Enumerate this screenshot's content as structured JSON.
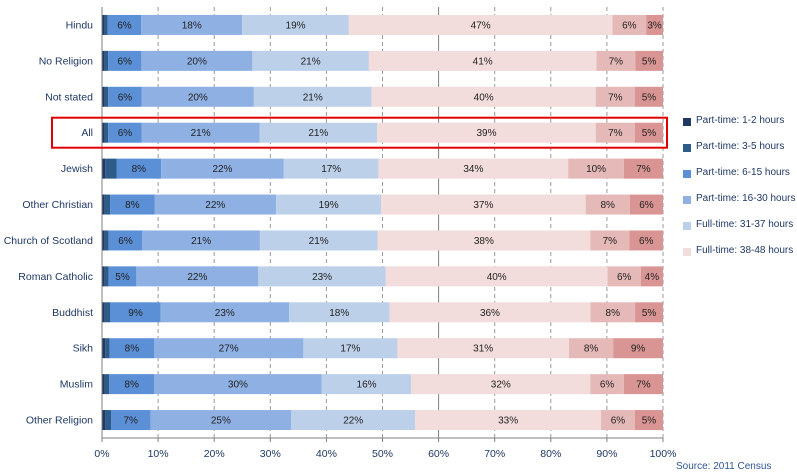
{
  "chart_data": {
    "type": "bar",
    "orientation": "horizontal",
    "stacked": true,
    "percent": true,
    "categories": [
      "Hindu",
      "No Religion",
      "Not stated",
      "All",
      "Jewish",
      "Other Christian",
      "Church of Scotland",
      "Roman Catholic",
      "Buddhist",
      "Sikh",
      "Muslim",
      "Other Religion"
    ],
    "highlighted_category": "All",
    "series": [
      {
        "name": "Part-time: 1-2 hours",
        "color": "#1f3864",
        "values": [
          0.5,
          0.5,
          0.5,
          0.5,
          0.6,
          0.5,
          0.5,
          0.5,
          0.5,
          0.6,
          0.5,
          0.6
        ]
      },
      {
        "name": "Part-time: 3-5 hours",
        "color": "#2e5c8a",
        "values": [
          0.5,
          0.6,
          0.6,
          0.6,
          2.0,
          1.0,
          0.7,
          0.7,
          1.0,
          0.8,
          0.8,
          1.0
        ]
      },
      {
        "name": "Part-time: 6-15 hours",
        "color": "#5b8fd6",
        "values": [
          6,
          6,
          6,
          6,
          8,
          8,
          6,
          5,
          9,
          8,
          8,
          7
        ]
      },
      {
        "name": "Part-time: 16-30 hours",
        "color": "#8eb0e3",
        "values": [
          18,
          20,
          20,
          21,
          22,
          22,
          21,
          22,
          23,
          27,
          30,
          25
        ]
      },
      {
        "name": "Full-time: 31-37 hours",
        "color": "#bdd0ea",
        "values": [
          19,
          21,
          21,
          21,
          17,
          19,
          21,
          23,
          18,
          17,
          16,
          22
        ]
      },
      {
        "name": "Full-time: 38-48 hours",
        "color": "#f2dcdc",
        "values": [
          47,
          41,
          40,
          39,
          34,
          37,
          38,
          40,
          36,
          31,
          32,
          33
        ]
      },
      {
        "name": "",
        "color": "#e6b9b9",
        "values": [
          6,
          7,
          7,
          7,
          10,
          8,
          7,
          6,
          8,
          8,
          6,
          6
        ]
      },
      {
        "name": "",
        "color": "#d99594",
        "values": [
          3,
          5,
          5,
          5,
          7,
          6,
          6,
          4,
          5,
          9,
          7,
          5
        ]
      }
    ],
    "data_labels": [
      [
        "",
        "",
        "6%",
        "18%",
        "19%",
        "47%",
        "6%",
        "3%"
      ],
      [
        "",
        "",
        "6%",
        "20%",
        "21%",
        "41%",
        "7%",
        "5%"
      ],
      [
        "",
        "",
        "6%",
        "20%",
        "21%",
        "40%",
        "7%",
        "5%"
      ],
      [
        "",
        "",
        "6%",
        "21%",
        "21%",
        "39%",
        "7%",
        "5%"
      ],
      [
        "",
        "",
        "8%",
        "22%",
        "17%",
        "34%",
        "10%",
        "7%"
      ],
      [
        "",
        "",
        "8%",
        "22%",
        "19%",
        "37%",
        "8%",
        "6%"
      ],
      [
        "",
        "",
        "6%",
        "21%",
        "21%",
        "38%",
        "7%",
        "6%"
      ],
      [
        "",
        "",
        "5%",
        "22%",
        "23%",
        "40%",
        "6%",
        "4%"
      ],
      [
        "",
        "",
        "9%",
        "23%",
        "18%",
        "36%",
        "8%",
        "5%"
      ],
      [
        "",
        "",
        "8%",
        "27%",
        "17%",
        "31%",
        "8%",
        "9%"
      ],
      [
        "",
        "",
        "8%",
        "30%",
        "16%",
        "32%",
        "6%",
        "7%"
      ],
      [
        "",
        "",
        "7%",
        "25%",
        "22%",
        "33%",
        "6%",
        "5%"
      ]
    ],
    "x_ticks": [
      "0%",
      "10%",
      "20%",
      "30%",
      "40%",
      "50%",
      "60%",
      "70%",
      "80%",
      "90%",
      "100%"
    ],
    "xlim": [
      0,
      100
    ],
    "xlabel": "",
    "ylabel": "",
    "title": "",
    "gridlines": "vertical dashed, solid at 60%",
    "legend_position": "right",
    "source": "Source: 2011 Census"
  }
}
